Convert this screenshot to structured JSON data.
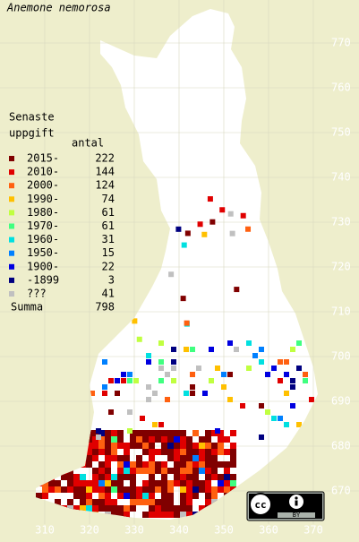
{
  "title": "Anemone nemorosa",
  "legend": {
    "title_lines": [
      "Senaste",
      "uppgift"
    ],
    "count_header": "antal",
    "rows": [
      {
        "label": "2015-",
        "count": 222,
        "color": "#800000"
      },
      {
        "label": "2010-",
        "count": 144,
        "color": "#e00000"
      },
      {
        "label": "2000-",
        "count": 124,
        "color": "#ff6010"
      },
      {
        "label": "1990-",
        "count": 74,
        "color": "#ffc000"
      },
      {
        "label": "1980-",
        "count": 61,
        "color": "#c0ff40"
      },
      {
        "label": "1970-",
        "count": 61,
        "color": "#40ff80"
      },
      {
        "label": "1960-",
        "count": 31,
        "color": "#00e0e0"
      },
      {
        "label": "1950-",
        "count": 15,
        "color": "#0080ff"
      },
      {
        "label": "1900-",
        "count": 22,
        "color": "#0000e0"
      },
      {
        "label": "-1899",
        "count": 3,
        "color": "#000080"
      },
      {
        "label": "???",
        "count": 41,
        "color": "#c0c0c0"
      }
    ],
    "total_label": "Summa",
    "total": 798
  },
  "grid": {
    "x_labels": [
      310,
      320,
      330,
      340,
      350,
      360,
      370
    ],
    "y_labels": [
      670,
      680,
      690,
      700,
      710,
      720,
      730,
      740,
      750,
      760,
      770
    ]
  },
  "license": {
    "badge": "BY"
  }
}
